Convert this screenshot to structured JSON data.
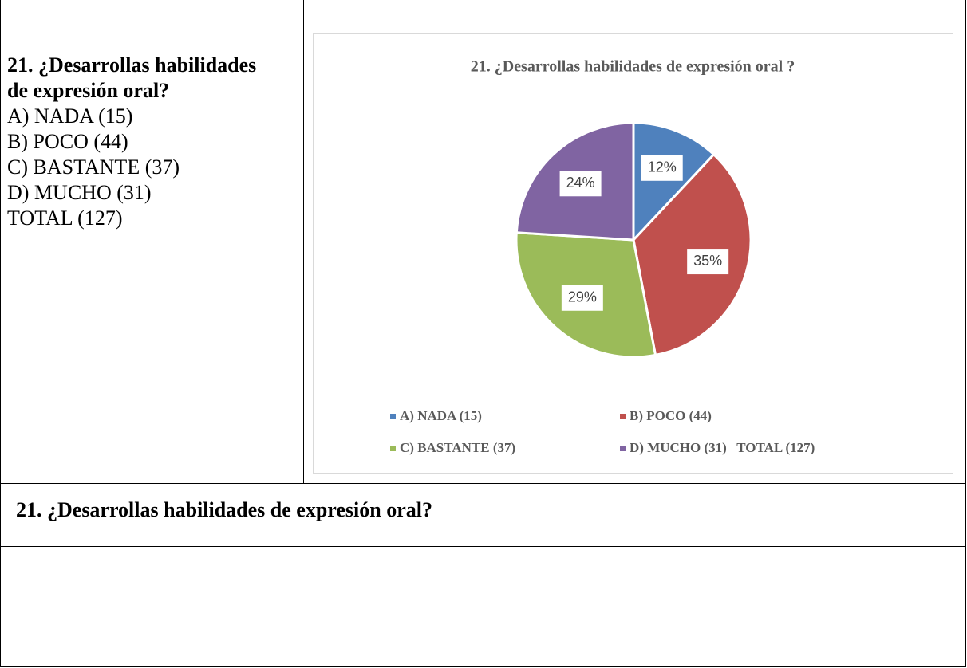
{
  "left_cell": {
    "question": "21. ¿Desarrollas habilidades de expresión oral?",
    "options": [
      "A) NADA (15)",
      "B) POCO (44)",
      "C) BASTANTE (37)",
      "D) MUCHO (31)",
      "TOTAL (127)"
    ]
  },
  "chart_data": {
    "type": "pie",
    "title": "21. ¿Desarrollas habilidades de expresión oral ?",
    "categories": [
      "A) NADA (15)",
      "B) POCO (44)",
      "C) BASTANTE (37)",
      "D) MUCHO (31)   TOTAL (127)"
    ],
    "values": [
      12,
      35,
      29,
      24
    ],
    "value_labels": [
      "12%",
      "35%",
      "29%",
      "24%"
    ],
    "colors": [
      "#4f81bd",
      "#c0504d",
      "#9bbb59",
      "#8064a2"
    ]
  },
  "section_heading": "21. ¿Desarrollas habilidades de expresión oral?"
}
